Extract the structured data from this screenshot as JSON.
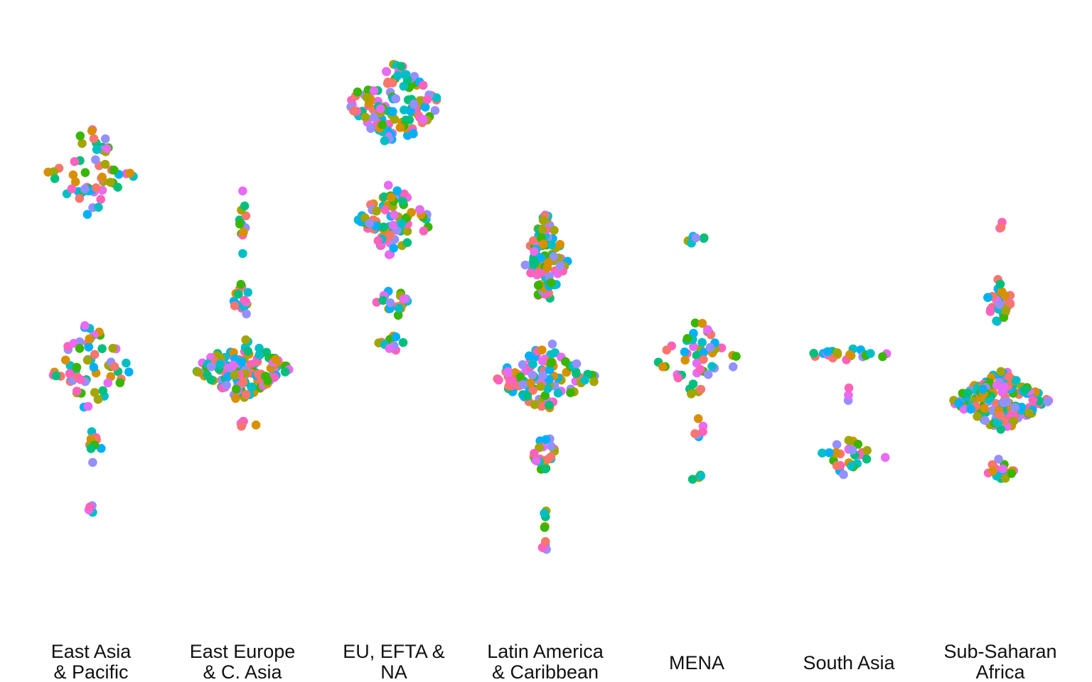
{
  "chart_data": {
    "type": "scatter",
    "subtype": "beeswarm",
    "title": "",
    "xlabel": "",
    "ylabel": "",
    "grid": false,
    "legend": "none",
    "y_axis_shown": false,
    "palette": [
      "#F8766D",
      "#D89000",
      "#A3A500",
      "#39B600",
      "#00BF7D",
      "#00BFC4",
      "#00B0F6",
      "#9590FF",
      "#E76BF3",
      "#FF62BC"
    ],
    "categories": [
      {
        "label_lines": [
          "East Asia",
          "& Pacific"
        ],
        "clusters": [
          {
            "y": 0.25,
            "spread": 0.09,
            "width": 0.7,
            "n": 55
          },
          {
            "y": 0.58,
            "spread": 0.075,
            "width": 0.75,
            "n": 60
          },
          {
            "y": 0.72,
            "spread": 0.03,
            "width": 0.2,
            "n": 10
          },
          {
            "y": 0.82,
            "spread": 0.015,
            "width": 0.1,
            "n": 5
          }
        ]
      },
      {
        "label_lines": [
          "East Europe",
          "& C. Asia"
        ],
        "clusters": [
          {
            "y": 0.33,
            "spread": 0.06,
            "width": 0.08,
            "n": 12
          },
          {
            "y": 0.47,
            "spread": 0.04,
            "width": 0.2,
            "n": 16
          },
          {
            "y": 0.585,
            "spread": 0.055,
            "width": 0.8,
            "n": 145
          },
          {
            "y": 0.68,
            "spread": 0.01,
            "width": 0.25,
            "n": 6
          }
        ]
      },
      {
        "label_lines": [
          "EU, EFTA &",
          "NA"
        ],
        "clusters": [
          {
            "y": 0.13,
            "spread": 0.085,
            "width": 0.78,
            "n": 125
          },
          {
            "y": 0.33,
            "spread": 0.065,
            "width": 0.65,
            "n": 80
          },
          {
            "y": 0.47,
            "spread": 0.03,
            "width": 0.3,
            "n": 18
          },
          {
            "y": 0.54,
            "spread": 0.015,
            "width": 0.25,
            "n": 10
          }
        ]
      },
      {
        "label_lines": [
          "Latin America",
          "& Caribbean"
        ],
        "clusters": [
          {
            "y": 0.4,
            "spread": 0.09,
            "width": 0.35,
            "n": 95
          },
          {
            "y": 0.6,
            "spread": 0.06,
            "width": 0.85,
            "n": 105
          },
          {
            "y": 0.73,
            "spread": 0.04,
            "width": 0.25,
            "n": 22
          },
          {
            "y": 0.84,
            "spread": 0.03,
            "width": 0.05,
            "n": 5
          },
          {
            "y": 0.89,
            "spread": 0.01,
            "width": 0.05,
            "n": 5
          }
        ]
      },
      {
        "label_lines": [
          "MENA"
        ],
        "clusters": [
          {
            "y": 0.37,
            "spread": 0.02,
            "width": 0.25,
            "n": 6
          },
          {
            "y": 0.57,
            "spread": 0.07,
            "width": 0.7,
            "n": 48
          },
          {
            "y": 0.69,
            "spread": 0.025,
            "width": 0.15,
            "n": 6
          },
          {
            "y": 0.77,
            "spread": 0.012,
            "width": 0.1,
            "n": 4
          }
        ]
      },
      {
        "label_lines": [
          "South Asia"
        ],
        "clusters": [
          {
            "y": 0.56,
            "spread": 0.012,
            "width": 0.75,
            "n": 22
          },
          {
            "y": 0.62,
            "spread": 0.025,
            "width": 0.05,
            "n": 3
          },
          {
            "y": 0.735,
            "spread": 0.035,
            "width": 0.6,
            "n": 28
          }
        ]
      },
      {
        "label_lines": [
          "Sub-Saharan",
          "Africa"
        ],
        "clusters": [
          {
            "y": 0.33,
            "spread": 0.02,
            "width": 0.05,
            "n": 3
          },
          {
            "y": 0.47,
            "spread": 0.045,
            "width": 0.25,
            "n": 42
          },
          {
            "y": 0.64,
            "spread": 0.055,
            "width": 0.8,
            "n": 165
          },
          {
            "y": 0.76,
            "spread": 0.025,
            "width": 0.3,
            "n": 16
          }
        ]
      }
    ]
  }
}
